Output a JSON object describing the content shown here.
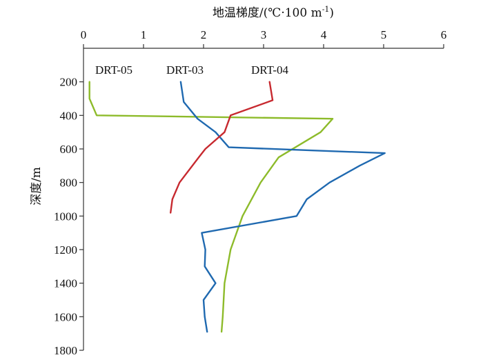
{
  "chart_data": {
    "type": "line",
    "x_axis": {
      "label": "地温梯度/(℃·100 m",
      "label_sup": "-1",
      "label_end": ")",
      "range": [
        0,
        6
      ],
      "ticks": [
        0,
        1,
        2,
        3,
        4,
        5,
        6
      ],
      "position": "top"
    },
    "y_axis": {
      "label": "深度/m",
      "range": [
        0,
        1800
      ],
      "ticks": [
        200,
        400,
        600,
        800,
        1000,
        1200,
        1400,
        1600,
        1800
      ],
      "reversed": true
    },
    "grid": false,
    "series": [
      {
        "name": "DRT-05",
        "color": "#8dbb2a",
        "points": [
          [
            0.1,
            200
          ],
          [
            0.1,
            300
          ],
          [
            0.22,
            400
          ],
          [
            4.15,
            420
          ],
          [
            3.95,
            500
          ],
          [
            3.25,
            650
          ],
          [
            2.95,
            800
          ],
          [
            2.65,
            1000
          ],
          [
            2.45,
            1200
          ],
          [
            2.35,
            1400
          ],
          [
            2.32,
            1600
          ],
          [
            2.3,
            1690
          ]
        ]
      },
      {
        "name": "DRT-03",
        "color": "#1f69b0",
        "points": [
          [
            1.62,
            200
          ],
          [
            1.67,
            320
          ],
          [
            1.9,
            420
          ],
          [
            2.2,
            500
          ],
          [
            2.42,
            590
          ],
          [
            5.02,
            625
          ],
          [
            4.6,
            700
          ],
          [
            4.1,
            800
          ],
          [
            3.72,
            900
          ],
          [
            3.55,
            1000
          ],
          [
            1.97,
            1100
          ],
          [
            2.03,
            1200
          ],
          [
            2.02,
            1300
          ],
          [
            2.2,
            1400
          ],
          [
            2.0,
            1500
          ],
          [
            2.02,
            1600
          ],
          [
            2.06,
            1690
          ]
        ]
      },
      {
        "name": "DRT-04",
        "color": "#c7292f",
        "points": [
          [
            3.1,
            200
          ],
          [
            3.15,
            310
          ],
          [
            2.45,
            400
          ],
          [
            2.35,
            500
          ],
          [
            2.03,
            600
          ],
          [
            1.92,
            650
          ],
          [
            1.6,
            800
          ],
          [
            1.48,
            900
          ],
          [
            1.45,
            980
          ]
        ]
      }
    ],
    "legend": "labels placed near line tops"
  }
}
